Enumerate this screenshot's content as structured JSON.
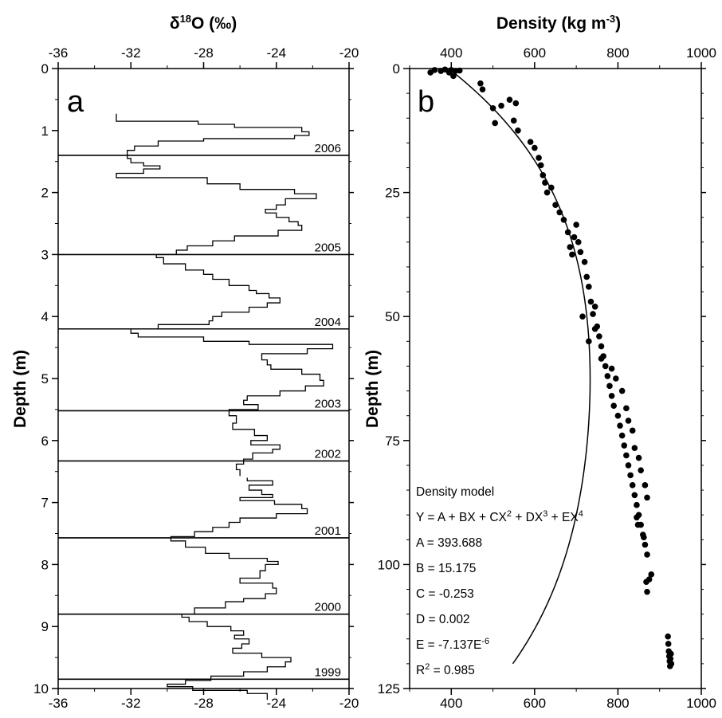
{
  "chart_data": [
    {
      "panel_label": "a",
      "type": "line",
      "title": "δ18O (‰)",
      "title_parts": {
        "main": "δ",
        "sup": "18",
        "rest": "O (‰)"
      },
      "xlabel": "δ18O (‰)",
      "ylabel": "Depth (m)",
      "xlim": [
        -36,
        -20
      ],
      "ylim": [
        0,
        10
      ],
      "y_inverted": true,
      "x_ticks": [
        "-36",
        "-32",
        "-28",
        "-24",
        "-20"
      ],
      "y_ticks": [
        "0",
        "1",
        "2",
        "3",
        "4",
        "5",
        "6",
        "7",
        "8",
        "9",
        "10"
      ],
      "x_tick_values": [
        -36,
        -32,
        -28,
        -24,
        -20
      ],
      "y_tick_values": [
        0,
        1,
        2,
        3,
        4,
        5,
        6,
        7,
        8,
        9,
        10
      ],
      "step_profile": [
        {
          "x": -32.8,
          "depth": 0.73
        },
        {
          "x": -28.3,
          "depth": 0.85
        },
        {
          "x": -26.3,
          "depth": 0.9
        },
        {
          "x": -22.6,
          "depth": 0.95
        },
        {
          "x": -22.2,
          "depth": 1.02
        },
        {
          "x": -23.0,
          "depth": 1.08
        },
        {
          "x": -28.0,
          "depth": 1.13
        },
        {
          "x": -30.5,
          "depth": 1.17
        },
        {
          "x": -31.8,
          "depth": 1.25
        },
        {
          "x": -32.2,
          "depth": 1.32
        },
        {
          "x": -32.0,
          "depth": 1.45
        },
        {
          "x": -31.3,
          "depth": 1.52
        },
        {
          "x": -30.4,
          "depth": 1.57
        },
        {
          "x": -31.3,
          "depth": 1.62
        },
        {
          "x": -32.8,
          "depth": 1.69
        },
        {
          "x": -27.8,
          "depth": 1.76
        },
        {
          "x": -26.0,
          "depth": 1.86
        },
        {
          "x": -23.0,
          "depth": 1.95
        },
        {
          "x": -21.8,
          "depth": 2.02
        },
        {
          "x": -23.5,
          "depth": 2.1
        },
        {
          "x": -24.0,
          "depth": 2.2
        },
        {
          "x": -24.6,
          "depth": 2.27
        },
        {
          "x": -24.0,
          "depth": 2.33
        },
        {
          "x": -23.3,
          "depth": 2.4
        },
        {
          "x": -22.8,
          "depth": 2.47
        },
        {
          "x": -22.6,
          "depth": 2.53
        },
        {
          "x": -23.9,
          "depth": 2.61
        },
        {
          "x": -26.3,
          "depth": 2.7
        },
        {
          "x": -27.5,
          "depth": 2.78
        },
        {
          "x": -28.9,
          "depth": 2.86
        },
        {
          "x": -29.5,
          "depth": 2.93
        },
        {
          "x": -30.6,
          "depth": 3.0
        },
        {
          "x": -30.2,
          "depth": 3.05
        },
        {
          "x": -29.0,
          "depth": 3.15
        },
        {
          "x": -28.0,
          "depth": 3.25
        },
        {
          "x": -27.5,
          "depth": 3.32
        },
        {
          "x": -26.6,
          "depth": 3.4
        },
        {
          "x": -25.5,
          "depth": 3.5
        },
        {
          "x": -25.1,
          "depth": 3.58
        },
        {
          "x": -24.4,
          "depth": 3.63
        },
        {
          "x": -23.8,
          "depth": 3.7
        },
        {
          "x": -24.5,
          "depth": 3.78
        },
        {
          "x": -25.5,
          "depth": 3.85
        },
        {
          "x": -27.0,
          "depth": 3.93
        },
        {
          "x": -27.5,
          "depth": 4.0
        },
        {
          "x": -27.7,
          "depth": 4.07
        },
        {
          "x": -30.5,
          "depth": 4.13
        },
        {
          "x": -32.0,
          "depth": 4.2
        },
        {
          "x": -31.6,
          "depth": 4.27
        },
        {
          "x": -28.0,
          "depth": 4.33
        },
        {
          "x": -25.5,
          "depth": 4.4
        },
        {
          "x": -20.9,
          "depth": 4.45
        },
        {
          "x": -22.3,
          "depth": 4.52
        },
        {
          "x": -24.8,
          "depth": 4.6
        },
        {
          "x": -24.5,
          "depth": 4.7
        },
        {
          "x": -24.3,
          "depth": 4.78
        },
        {
          "x": -22.6,
          "depth": 4.85
        },
        {
          "x": -21.6,
          "depth": 4.93
        },
        {
          "x": -21.4,
          "depth": 5.03
        },
        {
          "x": -22.4,
          "depth": 5.12
        },
        {
          "x": -23.8,
          "depth": 5.2
        },
        {
          "x": -25.6,
          "depth": 5.28
        },
        {
          "x": -25.8,
          "depth": 5.35
        },
        {
          "x": -25.0,
          "depth": 5.42
        },
        {
          "x": -26.6,
          "depth": 5.5
        },
        {
          "x": -26.2,
          "depth": 5.6
        },
        {
          "x": -26.4,
          "depth": 5.72
        },
        {
          "x": -25.2,
          "depth": 5.82
        },
        {
          "x": -24.5,
          "depth": 5.92
        },
        {
          "x": -25.4,
          "depth": 6.0
        },
        {
          "x": -23.8,
          "depth": 6.07
        },
        {
          "x": -24.2,
          "depth": 6.14
        },
        {
          "x": -25.3,
          "depth": 6.2
        },
        {
          "x": -25.8,
          "depth": 6.3
        },
        {
          "x": -26.2,
          "depth": 6.38
        },
        {
          "x": -26.0,
          "depth": 6.47
        }
      ],
      "step_profile_lower": [
        {
          "x": -25.6,
          "depth": 6.6
        },
        {
          "x": -24.2,
          "depth": 6.65
        },
        {
          "x": -25.5,
          "depth": 6.72
        },
        {
          "x": -24.8,
          "depth": 6.8
        },
        {
          "x": -24.2,
          "depth": 6.87
        },
        {
          "x": -26.0,
          "depth": 6.92
        },
        {
          "x": -24.1,
          "depth": 6.97
        },
        {
          "x": -22.6,
          "depth": 7.03
        },
        {
          "x": -22.3,
          "depth": 7.1
        },
        {
          "x": -24.0,
          "depth": 7.18
        },
        {
          "x": -26.0,
          "depth": 7.25
        },
        {
          "x": -26.6,
          "depth": 7.32
        },
        {
          "x": -27.5,
          "depth": 7.4
        },
        {
          "x": -28.5,
          "depth": 7.47
        },
        {
          "x": -29.8,
          "depth": 7.55
        },
        {
          "x": -29.0,
          "depth": 7.62
        },
        {
          "x": -27.9,
          "depth": 7.72
        },
        {
          "x": -26.6,
          "depth": 7.82
        },
        {
          "x": -24.5,
          "depth": 7.9
        },
        {
          "x": -23.9,
          "depth": 7.95
        },
        {
          "x": -24.6,
          "depth": 8.0
        },
        {
          "x": -24.9,
          "depth": 8.1
        },
        {
          "x": -26.0,
          "depth": 8.22
        },
        {
          "x": -24.2,
          "depth": 8.3
        },
        {
          "x": -24.0,
          "depth": 8.38
        },
        {
          "x": -24.6,
          "depth": 8.47
        },
        {
          "x": -25.8,
          "depth": 8.55
        },
        {
          "x": -26.8,
          "depth": 8.6
        },
        {
          "x": -28.5,
          "depth": 8.7
        },
        {
          "x": -29.2,
          "depth": 8.8
        },
        {
          "x": -28.8,
          "depth": 8.85
        },
        {
          "x": -27.8,
          "depth": 8.92
        },
        {
          "x": -26.5,
          "depth": 9.0
        },
        {
          "x": -25.8,
          "depth": 9.07
        },
        {
          "x": -26.3,
          "depth": 9.14
        },
        {
          "x": -25.5,
          "depth": 9.2
        },
        {
          "x": -25.9,
          "depth": 9.28
        },
        {
          "x": -26.4,
          "depth": 9.35
        },
        {
          "x": -24.8,
          "depth": 9.43
        },
        {
          "x": -23.2,
          "depth": 9.5
        },
        {
          "x": -23.5,
          "depth": 9.57
        },
        {
          "x": -24.5,
          "depth": 9.65
        },
        {
          "x": -25.8,
          "depth": 9.73
        },
        {
          "x": -27.6,
          "depth": 9.8
        },
        {
          "x": -29.0,
          "depth": 9.87
        },
        {
          "x": -30.0,
          "depth": 9.93
        },
        {
          "x": -28.6,
          "depth": 9.97
        },
        {
          "x": -25.6,
          "depth": 10.03
        },
        {
          "x": -24.5,
          "depth": 10.08
        }
      ],
      "year_boundaries": [
        {
          "depth": 1.4,
          "label": "2006"
        },
        {
          "depth": 3.0,
          "label": "2005"
        },
        {
          "depth": 4.2,
          "label": "2004"
        },
        {
          "depth": 5.52,
          "label": "2003"
        },
        {
          "depth": 6.33,
          "label": "2002"
        },
        {
          "depth": 7.57,
          "label": "2001"
        },
        {
          "depth": 8.8,
          "label": "2000"
        },
        {
          "depth": 9.85,
          "label": "1999"
        }
      ]
    },
    {
      "panel_label": "b",
      "type": "scatter",
      "title": "Density (kg m-3)",
      "title_parts": {
        "main": "Density (kg m",
        "sup": "-3",
        "rest": ")"
      },
      "xlabel": "Density (kg m-3)",
      "ylabel": "Depth (m)",
      "xlim": [
        300,
        1000
      ],
      "ylim": [
        0,
        125
      ],
      "y_inverted": true,
      "x_ticks": [
        "400",
        "600",
        "800",
        "1000"
      ],
      "y_ticks": [
        "0",
        "25",
        "50",
        "75",
        "100",
        "125"
      ],
      "x_tick_values": [
        400,
        600,
        800,
        1000
      ],
      "y_tick_values": [
        0,
        25,
        50,
        75,
        100,
        125
      ],
      "points": [
        [
          350,
          0.8
        ],
        [
          360,
          0.3
        ],
        [
          375,
          0.5
        ],
        [
          385,
          0.2
        ],
        [
          395,
          0.8
        ],
        [
          400,
          0.3
        ],
        [
          405,
          1.5
        ],
        [
          410,
          0.5
        ],
        [
          420,
          0.4
        ],
        [
          470,
          3.0
        ],
        [
          475,
          4.2
        ],
        [
          500,
          8.0
        ],
        [
          505,
          11.0
        ],
        [
          520,
          7.5
        ],
        [
          540,
          6.3
        ],
        [
          550,
          10.5
        ],
        [
          555,
          7.0
        ],
        [
          560,
          12.5
        ],
        [
          590,
          14.8
        ],
        [
          600,
          16.0
        ],
        [
          610,
          18.0
        ],
        [
          615,
          19.5
        ],
        [
          620,
          21.5
        ],
        [
          625,
          23.0
        ],
        [
          630,
          25.0
        ],
        [
          640,
          24.0
        ],
        [
          650,
          27.5
        ],
        [
          660,
          29.0
        ],
        [
          670,
          30.5
        ],
        [
          680,
          33.0
        ],
        [
          685,
          36.0
        ],
        [
          690,
          37.5
        ],
        [
          695,
          34.0
        ],
        [
          700,
          31.5
        ],
        [
          705,
          35.0
        ],
        [
          710,
          37.0
        ],
        [
          720,
          39.0
        ],
        [
          725,
          42.0
        ],
        [
          730,
          44.0
        ],
        [
          735,
          47.0
        ],
        [
          740,
          49.5
        ],
        [
          745,
          48.0
        ],
        [
          750,
          52.0
        ],
        [
          755,
          54.0
        ],
        [
          760,
          56.0
        ],
        [
          765,
          58.0
        ],
        [
          770,
          60.0
        ],
        [
          775,
          62.0
        ],
        [
          780,
          64.0
        ],
        [
          785,
          66.0
        ],
        [
          790,
          68.0
        ],
        [
          800,
          70.0
        ],
        [
          805,
          72.0
        ],
        [
          810,
          74.0
        ],
        [
          815,
          76.0
        ],
        [
          820,
          78.0
        ],
        [
          825,
          80.0
        ],
        [
          830,
          82.0
        ],
        [
          835,
          84.0
        ],
        [
          840,
          86.0
        ],
        [
          845,
          88.0
        ],
        [
          850,
          90.0
        ],
        [
          855,
          92.0
        ],
        [
          860,
          94.0
        ],
        [
          865,
          96.0
        ],
        [
          870,
          98.0
        ],
        [
          715,
          50.0
        ],
        [
          730,
          55.0
        ],
        [
          745,
          52.5
        ],
        [
          760,
          58.5
        ],
        [
          785,
          60.5
        ],
        [
          795,
          62.5
        ],
        [
          810,
          65.0
        ],
        [
          820,
          68.5
        ],
        [
          825,
          71.0
        ],
        [
          835,
          73.0
        ],
        [
          840,
          76.5
        ],
        [
          850,
          78.5
        ],
        [
          855,
          81.0
        ],
        [
          865,
          84.0
        ],
        [
          870,
          86.5
        ],
        [
          845,
          90.5
        ],
        [
          848,
          92.0
        ],
        [
          862,
          94.5
        ],
        [
          868,
          103.5
        ],
        [
          870,
          105.5
        ],
        [
          875,
          103.0
        ],
        [
          880,
          102.0
        ],
        [
          920,
          114.5
        ],
        [
          921,
          116.0
        ],
        [
          922,
          117.5
        ],
        [
          923,
          118.5
        ],
        [
          924,
          119.5
        ],
        [
          925,
          120.5
        ],
        [
          926,
          119.0
        ],
        [
          927,
          118.0
        ],
        [
          928,
          120.0
        ]
      ],
      "model": {
        "A": 393.688,
        "B": 15.175,
        "C": -0.253,
        "D": 0.002,
        "E": -7.137e-06
      },
      "model_text": {
        "heading": "Density model",
        "equation_parts": [
          "Y = A + BX + CX",
          "2",
          " + DX",
          "3",
          " + EX",
          "4"
        ],
        "lines": [
          "A = 393.688",
          "B = 15.175",
          "C = -0.253",
          "D = 0.002"
        ],
        "e_parts": [
          "E = -7.137E",
          "-6"
        ],
        "r2_parts": [
          "R",
          "2",
          " = 0.985"
        ]
      }
    }
  ]
}
